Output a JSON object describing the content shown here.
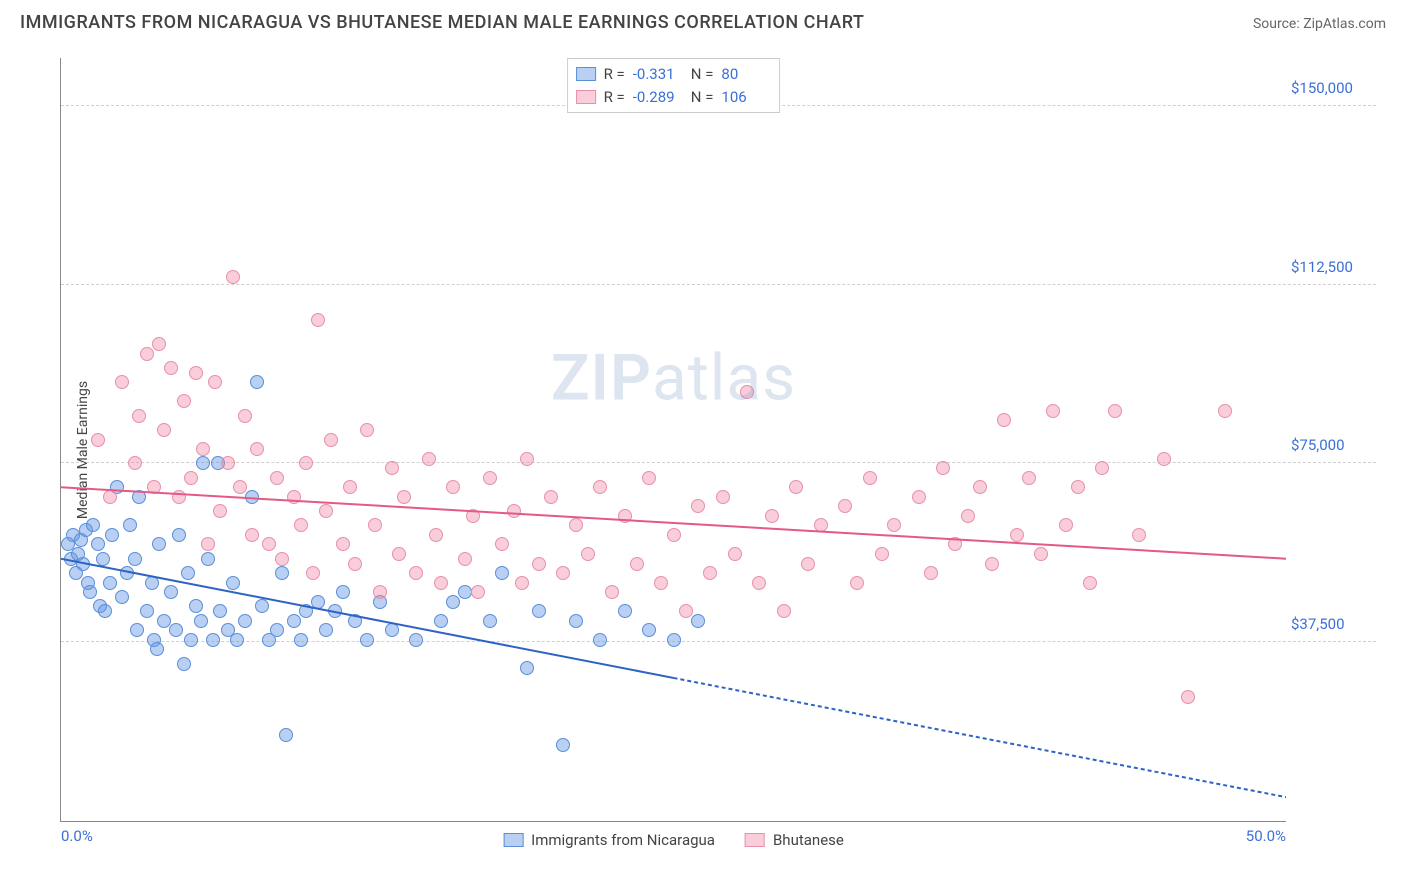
{
  "title": "IMMIGRANTS FROM NICARAGUA VS BHUTANESE MEDIAN MALE EARNINGS CORRELATION CHART",
  "source_label": "Source: ",
  "source_name": "ZipAtlas.com",
  "watermark": {
    "zip": "ZIP",
    "atlas": "atlas"
  },
  "chart": {
    "type": "scatter",
    "y_axis_label": "Median Male Earnings",
    "xlim": [
      0,
      50
    ],
    "ylim": [
      0,
      160000
    ],
    "x_ticks": [
      {
        "value": 0,
        "label": "0.0%"
      },
      {
        "value": 50,
        "label": "50.0%"
      }
    ],
    "y_ticks": [
      {
        "value": 37500,
        "label": "$37,500"
      },
      {
        "value": 75000,
        "label": "$75,000"
      },
      {
        "value": 112500,
        "label": "$112,500"
      },
      {
        "value": 150000,
        "label": "$150,000"
      }
    ],
    "grid_color": "#d0d0d0",
    "background_color": "#ffffff",
    "point_radius": 7,
    "series": [
      {
        "id": "nicaragua",
        "label": "Immigrants from Nicaragua",
        "R": "-0.331",
        "N": "80",
        "fill_color": "rgba(100,150,230,0.45)",
        "stroke_color": "#5a8fd6",
        "trend_color": "#2c63c4",
        "trend": {
          "x1": 0,
          "y1": 55000,
          "x2_solid": 25,
          "y2_solid": 30000,
          "x2": 50,
          "y2": 5000
        },
        "points": [
          [
            0.3,
            58000
          ],
          [
            0.4,
            55000
          ],
          [
            0.5,
            60000
          ],
          [
            0.6,
            52000
          ],
          [
            0.7,
            56000
          ],
          [
            0.8,
            59000
          ],
          [
            0.9,
            54000
          ],
          [
            1.0,
            61000
          ],
          [
            1.1,
            50000
          ],
          [
            1.2,
            48000
          ],
          [
            1.3,
            62000
          ],
          [
            1.5,
            58000
          ],
          [
            1.6,
            45000
          ],
          [
            1.7,
            55000
          ],
          [
            1.8,
            44000
          ],
          [
            2.0,
            50000
          ],
          [
            2.1,
            60000
          ],
          [
            2.3,
            70000
          ],
          [
            2.5,
            47000
          ],
          [
            2.7,
            52000
          ],
          [
            2.8,
            62000
          ],
          [
            3.0,
            55000
          ],
          [
            3.1,
            40000
          ],
          [
            3.2,
            68000
          ],
          [
            3.5,
            44000
          ],
          [
            3.7,
            50000
          ],
          [
            3.8,
            38000
          ],
          [
            3.9,
            36000
          ],
          [
            4.0,
            58000
          ],
          [
            4.2,
            42000
          ],
          [
            4.5,
            48000
          ],
          [
            4.7,
            40000
          ],
          [
            4.8,
            60000
          ],
          [
            5.0,
            33000
          ],
          [
            5.2,
            52000
          ],
          [
            5.3,
            38000
          ],
          [
            5.5,
            45000
          ],
          [
            5.7,
            42000
          ],
          [
            5.8,
            75000
          ],
          [
            6.0,
            55000
          ],
          [
            6.2,
            38000
          ],
          [
            6.4,
            75000
          ],
          [
            6.5,
            44000
          ],
          [
            6.8,
            40000
          ],
          [
            7.0,
            50000
          ],
          [
            7.2,
            38000
          ],
          [
            7.5,
            42000
          ],
          [
            7.8,
            68000
          ],
          [
            8.0,
            92000
          ],
          [
            8.2,
            45000
          ],
          [
            8.5,
            38000
          ],
          [
            8.8,
            40000
          ],
          [
            9.0,
            52000
          ],
          [
            9.2,
            18000
          ],
          [
            9.5,
            42000
          ],
          [
            9.8,
            38000
          ],
          [
            10.0,
            44000
          ],
          [
            10.5,
            46000
          ],
          [
            10.8,
            40000
          ],
          [
            11.2,
            44000
          ],
          [
            11.5,
            48000
          ],
          [
            12.0,
            42000
          ],
          [
            12.5,
            38000
          ],
          [
            13.0,
            46000
          ],
          [
            13.5,
            40000
          ],
          [
            14.5,
            38000
          ],
          [
            15.5,
            42000
          ],
          [
            16.0,
            46000
          ],
          [
            16.5,
            48000
          ],
          [
            17.5,
            42000
          ],
          [
            18.0,
            52000
          ],
          [
            19.0,
            32000
          ],
          [
            19.5,
            44000
          ],
          [
            20.5,
            16000
          ],
          [
            21.0,
            42000
          ],
          [
            22.0,
            38000
          ],
          [
            23.0,
            44000
          ],
          [
            24.0,
            40000
          ],
          [
            25.0,
            38000
          ],
          [
            26.0,
            42000
          ]
        ]
      },
      {
        "id": "bhutanese",
        "label": "Bhutanese",
        "R": "-0.289",
        "N": "106",
        "fill_color": "rgba(240,130,160,0.40)",
        "stroke_color": "#e890ab",
        "trend_color": "#e35a85",
        "trend": {
          "x1": 0,
          "y1": 70000,
          "x2_solid": 50,
          "y2_solid": 55000,
          "x2": 50,
          "y2": 55000
        },
        "points": [
          [
            1.5,
            80000
          ],
          [
            2.0,
            68000
          ],
          [
            2.5,
            92000
          ],
          [
            3.0,
            75000
          ],
          [
            3.2,
            85000
          ],
          [
            3.5,
            98000
          ],
          [
            3.8,
            70000
          ],
          [
            4.0,
            100000
          ],
          [
            4.2,
            82000
          ],
          [
            4.5,
            95000
          ],
          [
            4.8,
            68000
          ],
          [
            5.0,
            88000
          ],
          [
            5.3,
            72000
          ],
          [
            5.5,
            94000
          ],
          [
            5.8,
            78000
          ],
          [
            6.0,
            58000
          ],
          [
            6.3,
            92000
          ],
          [
            6.5,
            65000
          ],
          [
            6.8,
            75000
          ],
          [
            7.0,
            114000
          ],
          [
            7.3,
            70000
          ],
          [
            7.5,
            85000
          ],
          [
            7.8,
            60000
          ],
          [
            8.0,
            78000
          ],
          [
            8.5,
            58000
          ],
          [
            8.8,
            72000
          ],
          [
            9.0,
            55000
          ],
          [
            9.5,
            68000
          ],
          [
            9.8,
            62000
          ],
          [
            10.0,
            75000
          ],
          [
            10.3,
            52000
          ],
          [
            10.5,
            105000
          ],
          [
            10.8,
            65000
          ],
          [
            11.0,
            80000
          ],
          [
            11.5,
            58000
          ],
          [
            11.8,
            70000
          ],
          [
            12.0,
            54000
          ],
          [
            12.5,
            82000
          ],
          [
            12.8,
            62000
          ],
          [
            13.0,
            48000
          ],
          [
            13.5,
            74000
          ],
          [
            13.8,
            56000
          ],
          [
            14.0,
            68000
          ],
          [
            14.5,
            52000
          ],
          [
            15.0,
            76000
          ],
          [
            15.3,
            60000
          ],
          [
            15.5,
            50000
          ],
          [
            16.0,
            70000
          ],
          [
            16.5,
            55000
          ],
          [
            16.8,
            64000
          ],
          [
            17.0,
            48000
          ],
          [
            17.5,
            72000
          ],
          [
            18.0,
            58000
          ],
          [
            18.5,
            65000
          ],
          [
            18.8,
            50000
          ],
          [
            19.0,
            76000
          ],
          [
            19.5,
            54000
          ],
          [
            20.0,
            68000
          ],
          [
            20.5,
            52000
          ],
          [
            21.0,
            62000
          ],
          [
            21.5,
            56000
          ],
          [
            22.0,
            70000
          ],
          [
            22.5,
            48000
          ],
          [
            23.0,
            64000
          ],
          [
            23.5,
            54000
          ],
          [
            24.0,
            72000
          ],
          [
            24.5,
            50000
          ],
          [
            25.0,
            60000
          ],
          [
            25.5,
            44000
          ],
          [
            26.0,
            66000
          ],
          [
            26.5,
            52000
          ],
          [
            27.0,
            68000
          ],
          [
            27.5,
            56000
          ],
          [
            28.0,
            90000
          ],
          [
            28.5,
            50000
          ],
          [
            29.0,
            64000
          ],
          [
            29.5,
            44000
          ],
          [
            30.0,
            70000
          ],
          [
            30.5,
            54000
          ],
          [
            31.0,
            62000
          ],
          [
            32.0,
            66000
          ],
          [
            32.5,
            50000
          ],
          [
            33.0,
            72000
          ],
          [
            33.5,
            56000
          ],
          [
            34.0,
            62000
          ],
          [
            35.0,
            68000
          ],
          [
            35.5,
            52000
          ],
          [
            36.0,
            74000
          ],
          [
            36.5,
            58000
          ],
          [
            37.0,
            64000
          ],
          [
            37.5,
            70000
          ],
          [
            38.0,
            54000
          ],
          [
            38.5,
            84000
          ],
          [
            39.0,
            60000
          ],
          [
            39.5,
            72000
          ],
          [
            40.0,
            56000
          ],
          [
            40.5,
            86000
          ],
          [
            41.0,
            62000
          ],
          [
            41.5,
            70000
          ],
          [
            42.0,
            50000
          ],
          [
            42.5,
            74000
          ],
          [
            43.0,
            86000
          ],
          [
            44.0,
            60000
          ],
          [
            45.0,
            76000
          ],
          [
            46.0,
            26000
          ],
          [
            47.5,
            86000
          ]
        ]
      }
    ]
  },
  "legend": {
    "R_label": "R =",
    "N_label": "N ="
  }
}
